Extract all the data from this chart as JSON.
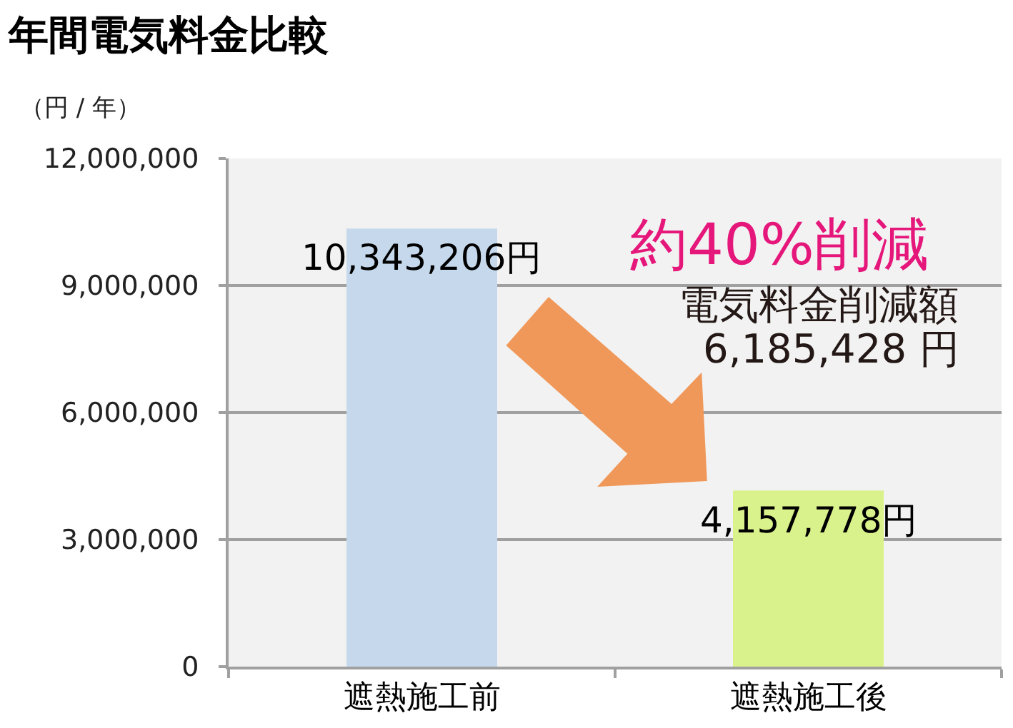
{
  "chart_data": {
    "type": "bar",
    "title": "年間電気料金比較",
    "ylabel": "（円 / 年）",
    "categories": [
      "遮熱施工前",
      "遮熱施工後"
    ],
    "values": [
      10343206,
      4157778
    ],
    "colors": [
      "#c6d9ec",
      "#daf28b"
    ],
    "value_labels": [
      "10,343,206円",
      "4,157,778円"
    ],
    "ylim": [
      0,
      12000000
    ],
    "yticks": [
      0,
      {
        "value": 3000000,
        "label": "3,000,000"
      },
      {
        "value": 6000000,
        "label": "6,000,000"
      },
      {
        "value": 9000000,
        "label": "9,000,000"
      },
      {
        "value": 12000000,
        "label": "12,000,000"
      }
    ],
    "grid": "y",
    "annotations": [
      "約40%削減",
      "電気料金削減額",
      "6,185,428 円"
    ]
  }
}
